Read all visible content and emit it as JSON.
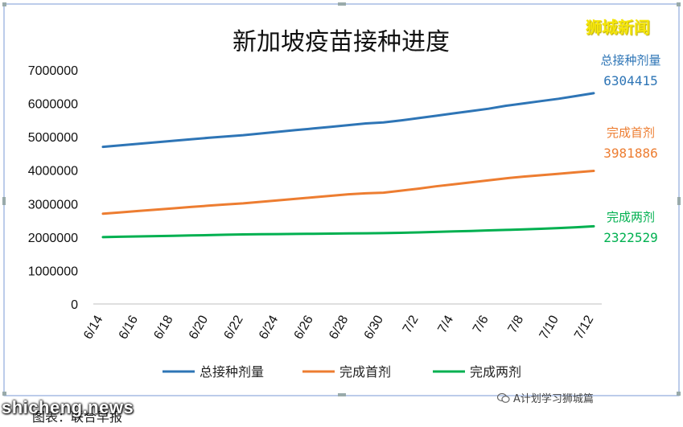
{
  "chart_data": {
    "type": "line",
    "title": "新加坡疫苗接种进度",
    "categories": [
      "6/14",
      "6/15",
      "6/16",
      "6/17",
      "6/18",
      "6/19",
      "6/20",
      "6/21",
      "6/22",
      "6/23",
      "6/24",
      "6/25",
      "6/26",
      "6/27",
      "6/28",
      "6/29",
      "6/30",
      "7/1",
      "7/2",
      "7/3",
      "7/4",
      "7/5",
      "7/6",
      "7/7",
      "7/8",
      "7/9",
      "7/10",
      "7/11",
      "7/12"
    ],
    "tick_labels": [
      "6/14",
      "6/16",
      "6/18",
      "6/20",
      "6/22",
      "6/24",
      "6/26",
      "6/28",
      "6/30",
      "7/2",
      "7/4",
      "7/6",
      "7/8",
      "7/10",
      "7/12"
    ],
    "ylim": [
      0,
      7000000
    ],
    "yticks": [
      "0",
      "1000000",
      "2000000",
      "3000000",
      "4000000",
      "5000000",
      "6000000",
      "7000000"
    ],
    "series": [
      {
        "name": "总接种剂量",
        "color": "#2e75b6",
        "end_label": "6304415",
        "values": [
          4700000,
          4745000,
          4790000,
          4835000,
          4880000,
          4925000,
          4970000,
          5010000,
          5050000,
          5100000,
          5150000,
          5200000,
          5250000,
          5300000,
          5350000,
          5400000,
          5430000,
          5490000,
          5560000,
          5630000,
          5700000,
          5770000,
          5840000,
          5930000,
          6000000,
          6070000,
          6140000,
          6220000,
          6304415
        ]
      },
      {
        "name": "完成首剂",
        "color": "#ed7d31",
        "end_label": "3981886",
        "values": [
          2700000,
          2740000,
          2780000,
          2820000,
          2860000,
          2900000,
          2940000,
          2975000,
          3010000,
          3055000,
          3100000,
          3145000,
          3190000,
          3235000,
          3280000,
          3310000,
          3330000,
          3390000,
          3450000,
          3520000,
          3580000,
          3640000,
          3700000,
          3760000,
          3810000,
          3850000,
          3895000,
          3940000,
          3981886
        ]
      },
      {
        "name": "完成两剂",
        "color": "#00b050",
        "end_label": "2322529",
        "values": [
          2000000,
          2010000,
          2020000,
          2030000,
          2040000,
          2050000,
          2060000,
          2070000,
          2080000,
          2085000,
          2090000,
          2095000,
          2100000,
          2105000,
          2110000,
          2115000,
          2120000,
          2130000,
          2140000,
          2155000,
          2170000,
          2185000,
          2200000,
          2215000,
          2230000,
          2250000,
          2270000,
          2295000,
          2322529
        ]
      }
    ],
    "legend_position": "bottom",
    "grid": false
  },
  "brand": "狮城新闻",
  "watermark": "shicheng.news",
  "credit": "A计划学习狮城篇",
  "caption": "图表：联合早报"
}
